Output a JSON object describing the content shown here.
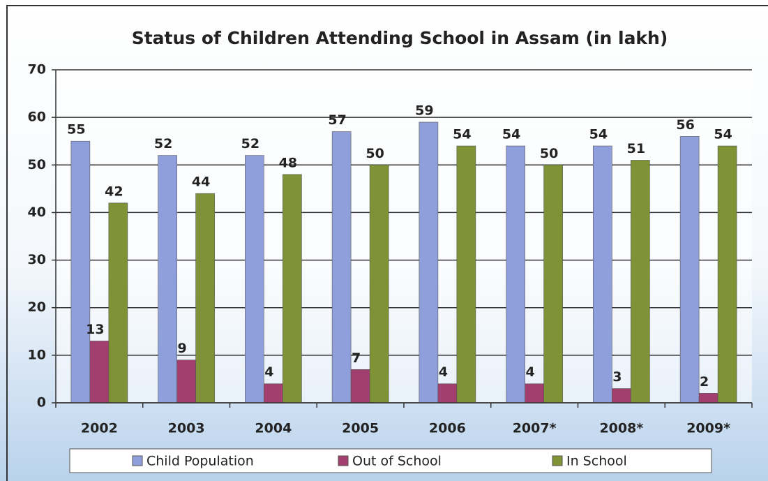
{
  "chart_data": {
    "type": "bar",
    "title": "Status of Children Attending School in Assam (in lakh)",
    "categories": [
      "2002",
      "2003",
      "2004",
      "2005",
      "2006",
      "2007*",
      "2008*",
      "2009*"
    ],
    "series": [
      {
        "name": "Child Population",
        "color": "#8f9fdb",
        "values": [
          55,
          52,
          52,
          57,
          59,
          54,
          54,
          56
        ]
      },
      {
        "name": "Out of School",
        "color": "#a23f6f",
        "values": [
          13,
          9,
          4,
          7,
          4,
          4,
          3,
          2
        ]
      },
      {
        "name": "In School",
        "color": "#7f9235",
        "values": [
          42,
          44,
          48,
          50,
          54,
          50,
          51,
          54
        ]
      }
    ],
    "ylim": [
      0,
      70
    ],
    "yticks": [
      0,
      10,
      20,
      30,
      40,
      50,
      60,
      70
    ],
    "grid": true,
    "legend": "bottom"
  }
}
